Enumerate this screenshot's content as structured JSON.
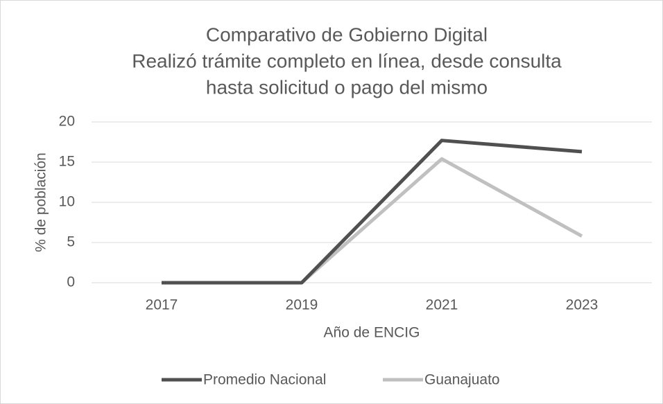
{
  "chart_data": {
    "type": "line",
    "title": [
      "Comparativo de Gobierno Digital",
      "Realizó trámite completo en línea, desde consulta",
      "hasta solicitud o pago del mismo"
    ],
    "x_label": "Año de ENCIG",
    "y_label": "% de población",
    "categories": [
      "2017",
      "2019",
      "2021",
      "2023"
    ],
    "series": [
      {
        "name": "Promedio Nacional",
        "color": "#505050",
        "values": [
          0,
          0,
          17.7,
          16.3
        ]
      },
      {
        "name": "Guanajuato",
        "color": "#c0c0c0",
        "values": [
          0,
          0,
          15.4,
          5.8
        ]
      }
    ],
    "ylim": [
      0,
      20
    ],
    "yticks": [
      0,
      5,
      10,
      15,
      20
    ],
    "grid": true,
    "legend": "bottom"
  }
}
